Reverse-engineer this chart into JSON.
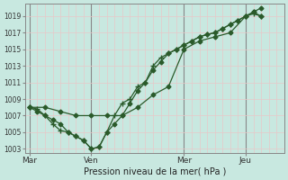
{
  "title": "Pression niveau de la mer( hPa )",
  "background_color": "#c8e8e0",
  "grid_color_minor": "#e8c8c8",
  "grid_color_major": "#d0a0a0",
  "line_color": "#2a5a2a",
  "ylim": [
    1002.5,
    1020.5
  ],
  "yticks": [
    1003,
    1005,
    1007,
    1009,
    1011,
    1013,
    1015,
    1017,
    1019
  ],
  "xlim": [
    -0.3,
    16.3
  ],
  "day_positions": [
    0,
    4,
    10,
    14
  ],
  "day_labels": [
    "Mar",
    "Ven",
    "Mer",
    "Jeu"
  ],
  "line1_x": [
    0,
    1,
    2,
    3,
    4,
    5,
    6,
    7,
    8,
    9,
    10,
    11,
    12,
    13,
    14,
    14.5,
    15
  ],
  "line1_y": [
    1008,
    1008,
    1007.5,
    1007,
    1007,
    1007,
    1007,
    1008,
    1009.5,
    1010.5,
    1015,
    1016,
    1016.5,
    1017,
    1019,
    1019.5,
    1019
  ],
  "line2_x": [
    0,
    0.5,
    1,
    1.5,
    2,
    2.5,
    3,
    3.5,
    4,
    4.5,
    5,
    5.5,
    6,
    6.5,
    7,
    7.5,
    8,
    8.5,
    9,
    9.5,
    10,
    10.5,
    11,
    11.5,
    12,
    12.5,
    13,
    13.5,
    14,
    14.5,
    15
  ],
  "line2_y": [
    1008,
    1007.8,
    1007,
    1006,
    1005.2,
    1005,
    1004.5,
    1004,
    1003,
    1003.2,
    1005,
    1007,
    1008.5,
    1009,
    1010.5,
    1011,
    1013,
    1014,
    1014.5,
    1015,
    1015.5,
    1016,
    1016.5,
    1016.8,
    1017,
    1017.5,
    1018,
    1018.5,
    1019,
    1019.3,
    1019
  ],
  "line3_x": [
    0,
    0.5,
    1,
    1.5,
    2,
    2.5,
    3,
    3.5,
    4,
    4.5,
    5,
    5.5,
    6,
    6.5,
    7,
    7.5,
    8,
    8.5,
    9,
    9.5,
    10,
    10.5,
    11,
    11.5,
    12,
    12.5,
    13,
    13.5,
    14,
    14.5,
    15
  ],
  "line3_y": [
    1008,
    1007.5,
    1007,
    1006.5,
    1006,
    1005,
    1004.5,
    1004,
    1003,
    1003.2,
    1005,
    1006,
    1007,
    1008.5,
    1010,
    1011,
    1012.5,
    1013.5,
    1014.5,
    1015,
    1015.5,
    1016,
    1016.5,
    1016.8,
    1017,
    1017.5,
    1018,
    1018.5,
    1019,
    1019.5,
    1020
  ]
}
